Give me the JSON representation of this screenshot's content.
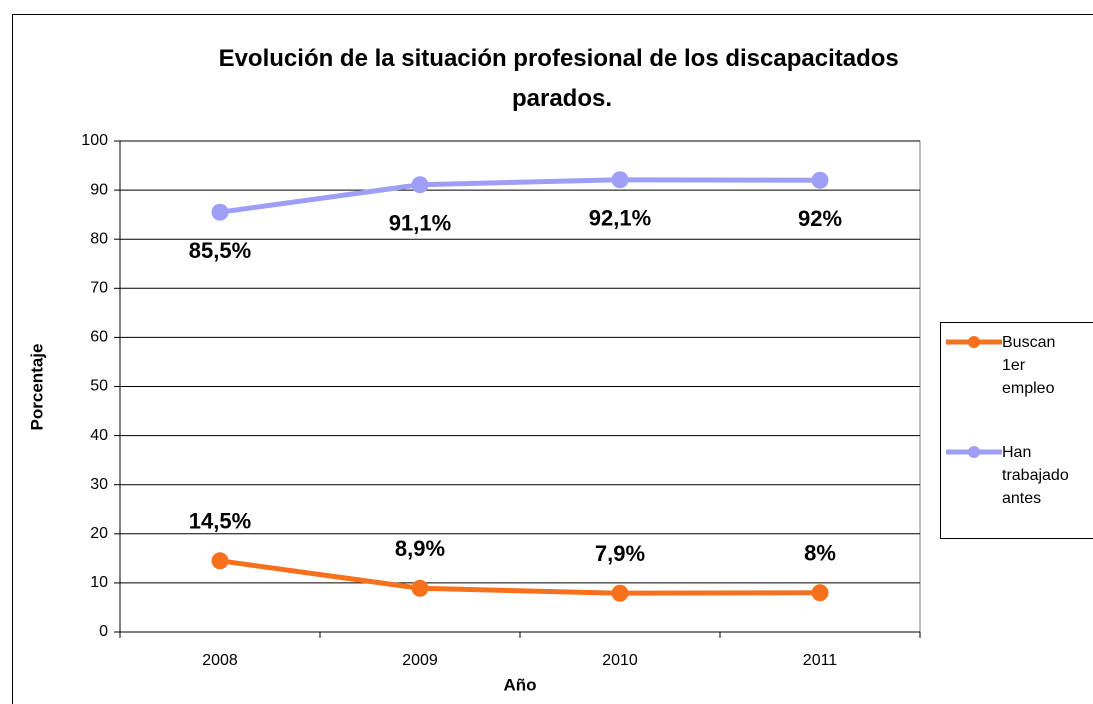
{
  "chart_data": {
    "type": "line",
    "title": "Evolución de la situación profesional de los discapacitados parados.",
    "x_label": "Año",
    "y_label": "Porcentaje",
    "categories": [
      "2008",
      "2009",
      "2010",
      "2011"
    ],
    "series": [
      {
        "name": "Buscan 1er empleo",
        "color": "#f7711c",
        "values": [
          14.5,
          8.9,
          7.9,
          8
        ],
        "value_labels": [
          "14,5%",
          "8,9%",
          "7,9%",
          "8%"
        ]
      },
      {
        "name": "Han trabajado antes",
        "color": "#9e9ef7",
        "values": [
          85.5,
          91.1,
          92.1,
          92
        ],
        "value_labels": [
          "85,5%",
          "91,1%",
          "92,1%",
          "92%"
        ]
      }
    ],
    "ylim": [
      0,
      100
    ],
    "yticks": [
      0,
      10,
      20,
      30,
      40,
      50,
      60,
      70,
      80,
      90,
      100
    ],
    "grid": true,
    "legend": "right"
  }
}
